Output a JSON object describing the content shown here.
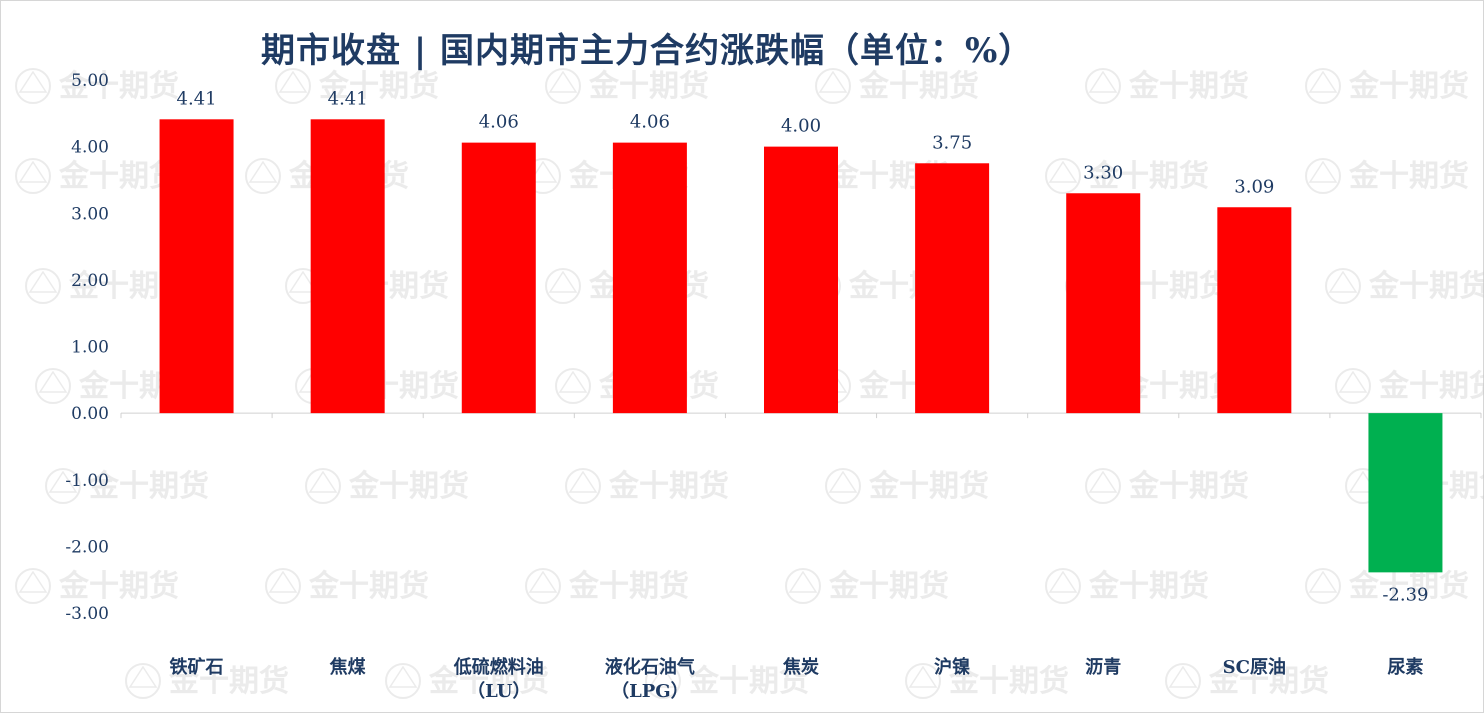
{
  "title": "期市收盘 | 国内期市主力合约涨跌幅（单位：%）",
  "watermark": {
    "text": "金十期货",
    "color": "#c8c8c8"
  },
  "colors": {
    "positive": "#ff0000",
    "negative": "#00b050",
    "axis_text": "#1f3b63",
    "label_text": "#1f3b63"
  },
  "chart_data": {
    "type": "bar",
    "categories": [
      [
        "铁矿石"
      ],
      [
        "焦煤"
      ],
      [
        "低硫燃料油",
        "（LU）"
      ],
      [
        "液化石油气",
        "（LPG）"
      ],
      [
        "焦炭"
      ],
      [
        "沪镍"
      ],
      [
        "沥青"
      ],
      [
        "SC原油"
      ],
      [
        "尿素"
      ]
    ],
    "values": [
      4.41,
      4.41,
      4.06,
      4.06,
      4.0,
      3.75,
      3.3,
      3.09,
      -2.39
    ],
    "value_labels": [
      "4.41",
      "4.41",
      "4.06",
      "4.06",
      "4.00",
      "3.75",
      "3.30",
      "3.09",
      "-2.39"
    ],
    "ylim": [
      -3,
      5
    ],
    "yticks": [
      5,
      4,
      3,
      2,
      1,
      0,
      -1,
      -2,
      -3
    ],
    "ytick_labels": [
      "5.00",
      "4.00",
      "3.00",
      "2.00",
      "1.00",
      "0.00",
      "-1.00",
      "-2.00",
      "-3.00"
    ],
    "grid": false,
    "legend": "none"
  }
}
